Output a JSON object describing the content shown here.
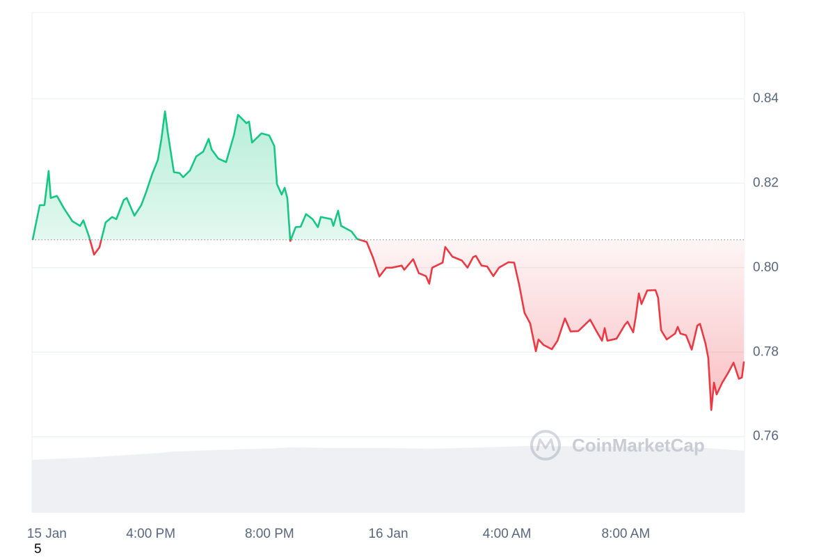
{
  "chart_data": {
    "type": "line",
    "watermark": "CoinMarketCap",
    "footnote": "5",
    "up_color": "#16c784",
    "down_color": "#ea3943",
    "reference_value": 0.8066,
    "grid": true,
    "xlim": [
      0,
      24
    ],
    "ylim": [
      0.742,
      0.8604
    ],
    "xticks": [
      {
        "value": 0.5,
        "label": "15 Jan"
      },
      {
        "value": 4,
        "label": "4:00 PM"
      },
      {
        "value": 8,
        "label": "8:00 PM"
      },
      {
        "value": 12,
        "label": "16 Jan"
      },
      {
        "value": 16,
        "label": "4:00 AM"
      },
      {
        "value": 20,
        "label": "8:00 AM"
      }
    ],
    "yticks": [
      0.76,
      0.78,
      {
        "value": 0.8,
        "label": "0.80"
      },
      0.82,
      0.84
    ],
    "x": [
      0.02,
      0.26,
      0.42,
      0.56,
      0.63,
      0.84,
      1.08,
      1.36,
      1.62,
      1.73,
      1.92,
      2.09,
      2.27,
      2.48,
      2.7,
      2.84,
      3.09,
      3.19,
      3.45,
      3.68,
      3.84,
      4.05,
      4.24,
      4.36,
      4.48,
      4.57,
      4.78,
      4.97,
      5.09,
      5.32,
      5.53,
      5.77,
      5.95,
      6.05,
      6.28,
      6.54,
      6.8,
      6.94,
      7.22,
      7.31,
      7.41,
      7.73,
      7.99,
      8.16,
      8.25,
      8.41,
      8.51,
      8.6,
      8.7,
      8.88,
      9.05,
      9.23,
      9.45,
      9.63,
      9.73,
      10.08,
      10.15,
      10.31,
      10.41,
      10.76,
      10.95,
      11.27,
      11.48,
      11.7,
      11.93,
      12.12,
      12.45,
      12.54,
      12.84,
      13.03,
      13.27,
      13.38,
      13.48,
      13.83,
      13.92,
      14.16,
      14.48,
      14.67,
      14.86,
      14.95,
      15.14,
      15.33,
      15.54,
      15.73,
      16.05,
      16.24,
      16.41,
      16.59,
      16.78,
      16.97,
      17.06,
      17.23,
      17.51,
      17.7,
      17.95,
      18.14,
      18.4,
      18.8,
      19.01,
      19.2,
      19.29,
      19.38,
      19.69,
      19.97,
      20.06,
      20.25,
      20.34,
      20.44,
      20.53,
      20.72,
      21.0,
      21.09,
      21.19,
      21.38,
      21.66,
      21.75,
      21.84,
      22.03,
      22.22,
      22.41,
      22.5,
      22.69,
      22.78,
      22.88,
      22.97,
      23.06,
      23.25,
      23.44,
      23.63,
      23.81,
      23.91,
      23.98
    ],
    "values": [
      0.8066,
      0.8148,
      0.8148,
      0.8229,
      0.8165,
      0.817,
      0.814,
      0.811,
      0.8099,
      0.8112,
      0.8074,
      0.8031,
      0.8048,
      0.8107,
      0.812,
      0.8115,
      0.816,
      0.8165,
      0.8123,
      0.8148,
      0.8178,
      0.8222,
      0.8255,
      0.8305,
      0.837,
      0.8321,
      0.8226,
      0.8224,
      0.8214,
      0.823,
      0.8263,
      0.8275,
      0.8305,
      0.828,
      0.8258,
      0.825,
      0.8313,
      0.8362,
      0.8342,
      0.8346,
      0.8296,
      0.8318,
      0.8313,
      0.8288,
      0.8198,
      0.8173,
      0.8189,
      0.8165,
      0.8063,
      0.8096,
      0.8097,
      0.8127,
      0.8115,
      0.8096,
      0.812,
      0.8115,
      0.8099,
      0.8135,
      0.8099,
      0.8086,
      0.8068,
      0.8061,
      0.8025,
      0.7979,
      0.8,
      0.8,
      0.8005,
      0.7995,
      0.802,
      0.7987,
      0.798,
      0.7962,
      0.8,
      0.8012,
      0.8049,
      0.8026,
      0.8017,
      0.8,
      0.8025,
      0.8028,
      0.8005,
      0.8003,
      0.798,
      0.8,
      0.8013,
      0.8012,
      0.7959,
      0.7893,
      0.7868,
      0.7802,
      0.783,
      0.7817,
      0.7807,
      0.7827,
      0.788,
      0.7849,
      0.785,
      0.7877,
      0.785,
      0.7827,
      0.7857,
      0.7827,
      0.7832,
      0.7865,
      0.7872,
      0.7847,
      0.7885,
      0.7939,
      0.7914,
      0.7946,
      0.7947,
      0.7929,
      0.7852,
      0.783,
      0.7844,
      0.786,
      0.7844,
      0.784,
      0.7806,
      0.7863,
      0.7867,
      0.7819,
      0.7786,
      0.7663,
      0.7728,
      0.77,
      0.7728,
      0.775,
      0.7775,
      0.7737,
      0.774,
      0.7778
    ]
  }
}
